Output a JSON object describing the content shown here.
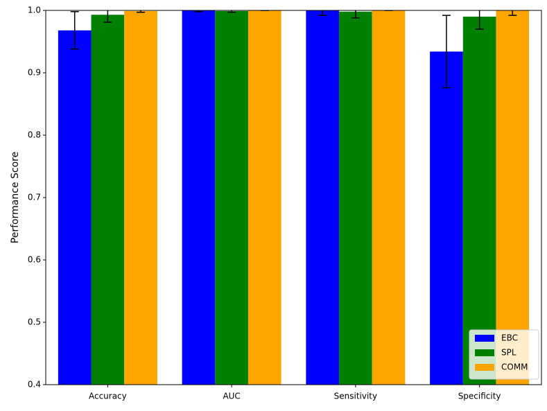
{
  "chart_data": {
    "type": "bar",
    "y_label": "Performance Score",
    "categories": [
      "Accuracy",
      "AUC",
      "Sensitivity",
      "Specificity"
    ],
    "series": [
      {
        "name": "EBC",
        "color": "#0000ff",
        "values": [
          0.968,
          1.0,
          1.0,
          0.934
        ],
        "errors": [
          0.03,
          0.002,
          0.008,
          0.058
        ]
      },
      {
        "name": "SPL",
        "color": "#008000",
        "values": [
          0.993,
          0.999,
          0.998,
          0.99
        ],
        "errors": [
          0.012,
          0.002,
          0.01,
          0.02
        ]
      },
      {
        "name": "COMM",
        "color": "#ffa500",
        "values": [
          0.999,
          1.0,
          1.0,
          1.0
        ],
        "errors": [
          0.002,
          0.0,
          0.0,
          0.008
        ]
      }
    ],
    "ylim": [
      0.4,
      1.0
    ],
    "yticks": [
      0.4,
      0.5,
      0.6,
      0.7,
      0.8,
      0.9,
      {
        "value": 1.0,
        "label": "1.0"
      }
    ],
    "legend": "lower right"
  }
}
